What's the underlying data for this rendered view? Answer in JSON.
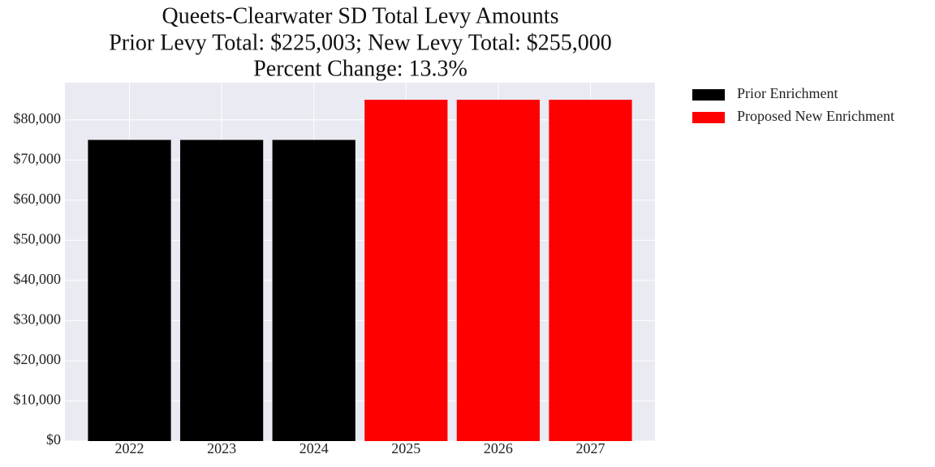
{
  "chart_data": {
    "type": "bar",
    "title": [
      "Queets-Clearwater SD Total Levy Amounts",
      "Prior Levy Total:  $225,003; New Levy Total: $255,000",
      "Percent Change: 13.3%"
    ],
    "categories": [
      "2022",
      "2023",
      "2024",
      "2025",
      "2026",
      "2027"
    ],
    "series": [
      {
        "name": "Prior Enrichment",
        "color": "#000000",
        "values": [
          75001,
          75001,
          75001,
          null,
          null,
          null
        ]
      },
      {
        "name": "Proposed New Enrichment",
        "color": "#ff0000",
        "values": [
          null,
          null,
          null,
          85000,
          85000,
          85000
        ]
      }
    ],
    "ylim": [
      0,
      89250
    ],
    "yticks": [
      {
        "value": 0,
        "label": "$0"
      },
      {
        "value": 10000,
        "label": "$10,000"
      },
      {
        "value": 20000,
        "label": "$20,000"
      },
      {
        "value": 30000,
        "label": "$30,000"
      },
      {
        "value": 40000,
        "label": "$40,000"
      },
      {
        "value": 50000,
        "label": "$50,000"
      },
      {
        "value": 60000,
        "label": "$60,000"
      },
      {
        "value": 70000,
        "label": "$70,000"
      },
      {
        "value": 80000,
        "label": "$80,000"
      }
    ],
    "grid": true,
    "legend": "outside upper right"
  }
}
